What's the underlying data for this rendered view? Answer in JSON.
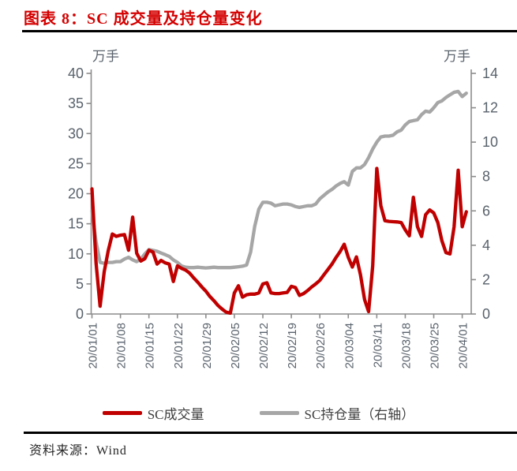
{
  "title": "图表 8：SC 成交量及持仓量变化",
  "source": "资料来源：Wind",
  "colors": {
    "title_red": "#d40000",
    "volume_line": "#c00000",
    "open_interest_line": "#a6a6a6",
    "axis_line": "#8c8c8c",
    "axis_label": "#59626c",
    "rule_black": "#000000"
  },
  "chart_data": {
    "type": "line",
    "title": "SC 成交量及持仓量变化",
    "y_left": {
      "unit": "万手",
      "min": 0,
      "max": 40,
      "ticks": [
        0,
        5,
        10,
        15,
        20,
        25,
        30,
        35,
        40
      ]
    },
    "y_right": {
      "unit": "万手",
      "min": 0,
      "max": 14,
      "ticks": [
        0,
        2,
        4,
        6,
        8,
        10,
        12,
        14
      ]
    },
    "x_tick_labels": [
      "20/01/01",
      "20/01/08",
      "20/01/15",
      "20/01/22",
      "20/01/29",
      "20/02/05",
      "20/02/12",
      "20/02/19",
      "20/02/26",
      "20/03/04",
      "20/03/11",
      "20/03/18",
      "20/03/25",
      "20/04/01"
    ],
    "days_per_tick": 7,
    "grid": false,
    "legend_position": "bottom",
    "series": [
      {
        "name": "SC成交量",
        "axis": "left",
        "color": "#c00000",
        "values": [
          20.8,
          8.5,
          1.3,
          7.0,
          10.5,
          13.3,
          12.9,
          13.1,
          13.2,
          10.6,
          16.1,
          10.1,
          8.8,
          9.2,
          10.6,
          10.3,
          8.3,
          8.9,
          8.5,
          8.3,
          5.4,
          8.0,
          7.6,
          7.3,
          6.8,
          6.0,
          5.3,
          4.5,
          3.8,
          2.9,
          2.2,
          1.4,
          0.8,
          0.3,
          0.15,
          3.5,
          4.7,
          2.8,
          3.2,
          3.3,
          3.3,
          3.5,
          5.0,
          5.2,
          3.5,
          3.4,
          3.4,
          3.5,
          3.6,
          4.6,
          4.4,
          3.1,
          3.4,
          3.9,
          4.5,
          5.0,
          5.6,
          6.5,
          7.4,
          8.3,
          9.4,
          10.4,
          11.6,
          9.4,
          7.8,
          9.5,
          6.5,
          2.4,
          0.4,
          8.0,
          24.2,
          18.0,
          15.5,
          15.4,
          15.35,
          15.3,
          15.2,
          14.0,
          13.0,
          19.4,
          14.5,
          12.9,
          16.5,
          17.3,
          16.8,
          15.2,
          12.2,
          10.2,
          10.0,
          14.5,
          23.9,
          14.5,
          17.0
        ]
      },
      {
        "name": "SC持仓量（右轴）",
        "axis": "right",
        "color": "#a6a6a6",
        "values": [
          6.0,
          4.2,
          3.0,
          2.95,
          3.0,
          3.0,
          3.05,
          3.05,
          3.2,
          3.3,
          3.15,
          3.05,
          3.2,
          3.5,
          3.75,
          3.7,
          3.65,
          3.55,
          3.45,
          3.35,
          3.15,
          3.0,
          2.8,
          2.72,
          2.7,
          2.7,
          2.72,
          2.7,
          2.68,
          2.7,
          2.72,
          2.7,
          2.7,
          2.7,
          2.7,
          2.72,
          2.75,
          2.78,
          2.85,
          3.6,
          5.1,
          6.1,
          6.5,
          6.5,
          6.45,
          6.3,
          6.35,
          6.4,
          6.4,
          6.35,
          6.25,
          6.2,
          6.25,
          6.3,
          6.3,
          6.4,
          6.7,
          6.9,
          7.1,
          7.25,
          7.45,
          7.6,
          7.7,
          7.5,
          8.3,
          8.5,
          8.5,
          8.7,
          9.1,
          9.6,
          10.0,
          10.3,
          10.35,
          10.35,
          10.4,
          10.6,
          10.7,
          11.0,
          11.2,
          11.25,
          11.3,
          11.6,
          11.8,
          11.75,
          12.0,
          12.3,
          12.4,
          12.6,
          12.75,
          12.9,
          12.95,
          12.65,
          12.85
        ]
      }
    ],
    "legend": [
      "SC成交量",
      "SC持仓量（右轴）"
    ]
  }
}
